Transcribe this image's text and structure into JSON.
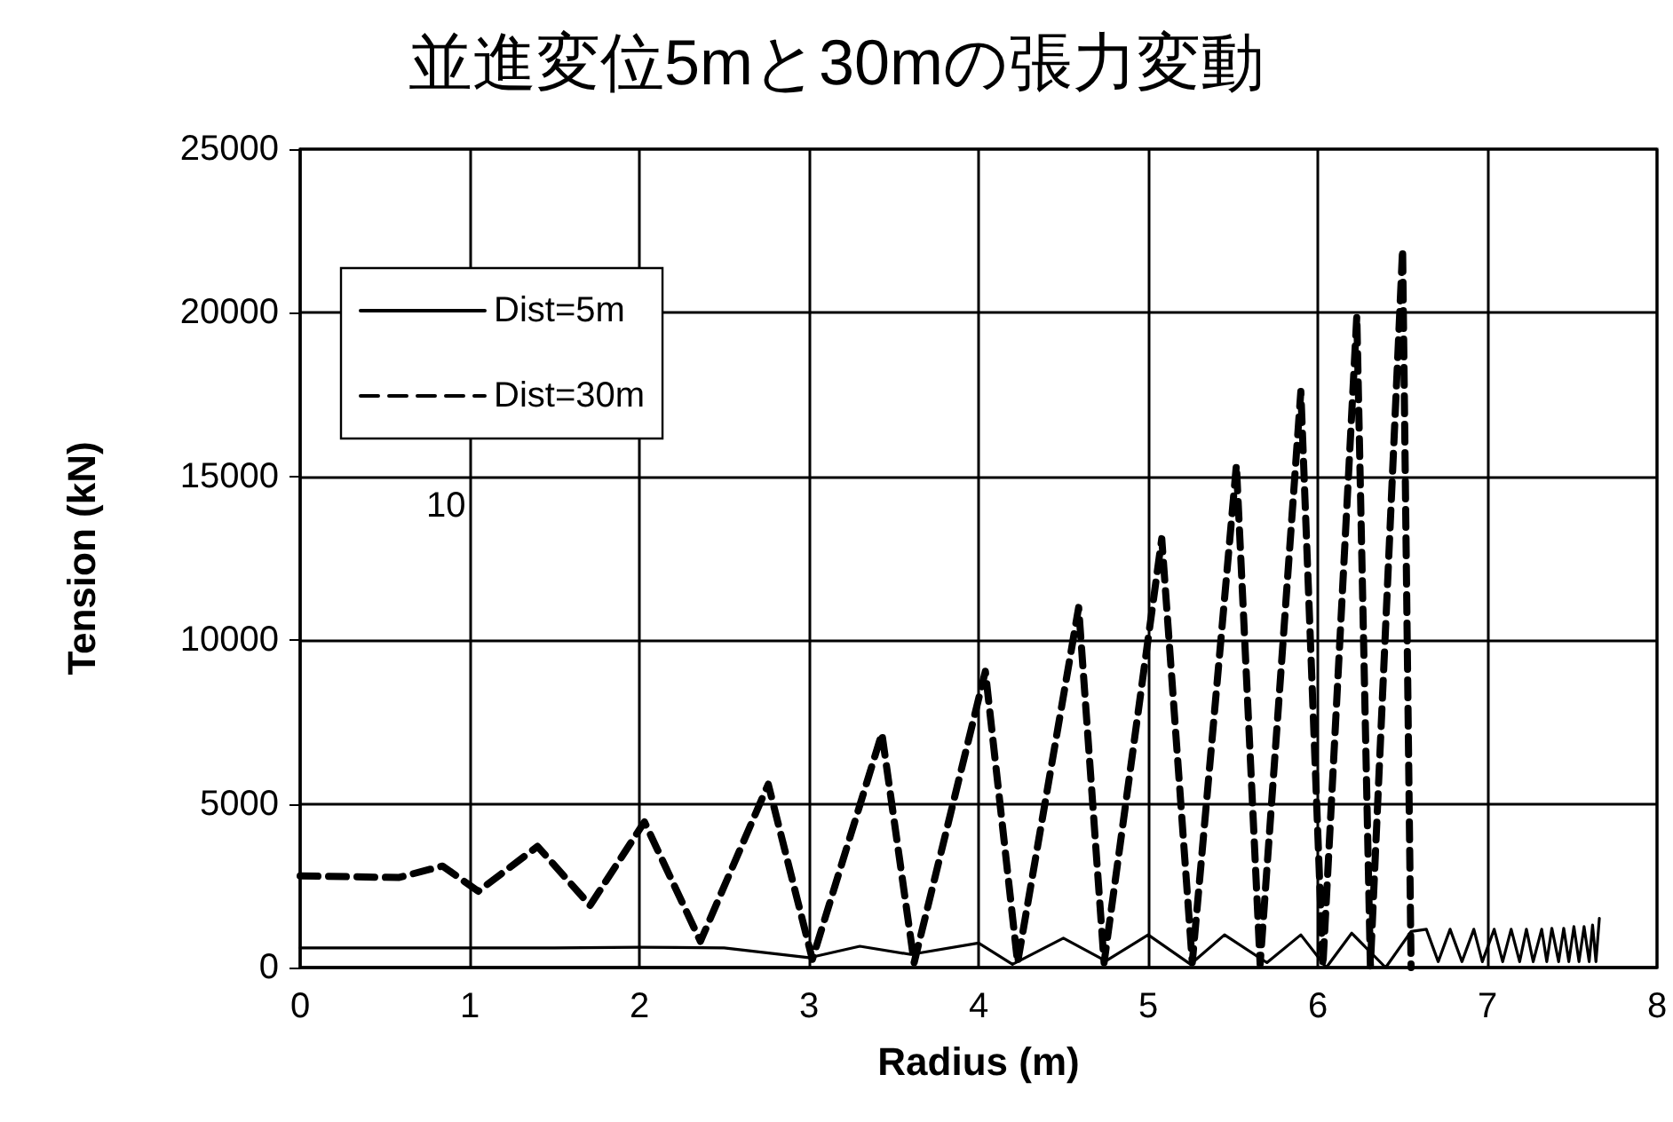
{
  "chart_data": {
    "type": "line",
    "title": "並進変位5mと30mの張力変動",
    "xlabel": "Radius (m)",
    "ylabel": "Tension (kN)",
    "xlim": [
      0,
      8
    ],
    "xticks": [
      0,
      1,
      2,
      3,
      4,
      5,
      6,
      7,
      8
    ],
    "ylim": [
      0,
      25000
    ],
    "yticks": [
      0,
      5000,
      10000,
      15000,
      20000,
      25000
    ],
    "grid": true,
    "legend": "top left",
    "marker": "none",
    "annotations": [
      "10"
    ],
    "series": [
      {
        "name": "Dist=5m",
        "color": "#000000",
        "line_style": "solid",
        "x": [
          0,
          0.5,
          1,
          1.5,
          2,
          2.5,
          3,
          3.3,
          3.6,
          4.0,
          4.2,
          4.5,
          4.75,
          5.0,
          5.25,
          5.45,
          5.7,
          5.9,
          6.05,
          6.2,
          6.4,
          6.55,
          6.64,
          6.71,
          6.78,
          6.85,
          6.92,
          6.97,
          7.04,
          7.09,
          7.14,
          7.19,
          7.23,
          7.27,
          7.32,
          7.35,
          7.38,
          7.42,
          7.45,
          7.48,
          7.51,
          7.54,
          7.57,
          7.6,
          7.62,
          7.64,
          7.66
        ],
        "values": [
          600,
          600,
          600,
          600,
          620,
          600,
          300,
          650,
          400,
          750,
          100,
          900,
          200,
          1000,
          100,
          1000,
          150,
          1000,
          0,
          1050,
          0,
          1100,
          1170,
          180,
          1170,
          180,
          1170,
          180,
          1170,
          180,
          1170,
          180,
          1170,
          180,
          1170,
          180,
          1200,
          180,
          1200,
          180,
          1250,
          180,
          1250,
          180,
          1300,
          180,
          1500
        ]
      },
      {
        "name": "Dist=30m",
        "color": "#000000",
        "line_style": "dashed",
        "x": [
          0,
          0.58,
          0.84,
          1.05,
          1.4,
          1.71,
          2.03,
          2.36,
          2.76,
          3.02,
          3.43,
          3.62,
          4.04,
          4.23,
          4.59,
          4.74,
          5.08,
          5.26,
          5.52,
          5.66,
          5.9,
          6.03,
          6.23,
          6.31,
          6.5,
          6.55
        ],
        "values": [
          2800,
          2750,
          3100,
          2330,
          3700,
          1900,
          4450,
          800,
          5600,
          250,
          7150,
          150,
          9050,
          150,
          11000,
          150,
          13100,
          150,
          15350,
          100,
          17600,
          50,
          19900,
          50,
          21950,
          0
        ]
      }
    ]
  }
}
